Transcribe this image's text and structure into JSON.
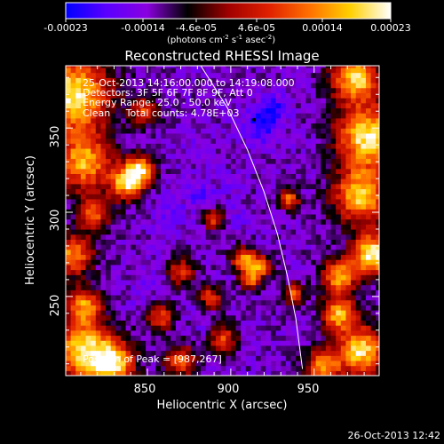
{
  "colorbar": {
    "ticks": [
      "-0.00023",
      "-0.00014",
      "-4.6e-05",
      "4.6e-05",
      "0.00014",
      "0.00023"
    ],
    "range": [
      -0.00023,
      0.00023
    ],
    "unit_base": "(photons cm",
    "unit_sup1": "-2",
    "unit_mid1": " s",
    "unit_sup2": "-1",
    "unit_mid2": " asec",
    "unit_sup3": "-2",
    "unit_end": ")",
    "colors": [
      "#0000ff",
      "#5a00ff",
      "#8a00e0",
      "#000000",
      "#a00000",
      "#e02000",
      "#ff7000",
      "#ffd000",
      "#ffffff"
    ]
  },
  "chart_data": {
    "type": "heatmap",
    "title": "Reconstructed RHESSI Image",
    "xlabel": "Heliocentric X (arcsec)",
    "ylabel": "Heliocentric Y (arcsec)",
    "xlim": [
      801,
      989
    ],
    "ylim": [
      203,
      387
    ],
    "xticks": [
      850,
      900,
      950
    ],
    "yticks": [
      250,
      300,
      350
    ],
    "limb": [
      [
        882,
        387
      ],
      [
        898,
        362
      ],
      [
        910,
        337
      ],
      [
        920,
        312
      ],
      [
        928,
        287
      ],
      [
        934,
        262
      ],
      [
        939,
        237
      ],
      [
        943,
        207
      ]
    ],
    "peak": [
      987,
      267
    ],
    "max_marker": [
      914,
      355
    ],
    "blobs": [
      {
        "x": 805,
        "y": 370,
        "v": 0.95,
        "r": 22
      },
      {
        "x": 812,
        "y": 330,
        "v": 0.7,
        "r": 16
      },
      {
        "x": 838,
        "y": 318,
        "v": 0.85,
        "r": 10
      },
      {
        "x": 846,
        "y": 326,
        "v": 0.7,
        "r": 8
      },
      {
        "x": 805,
        "y": 275,
        "v": 0.6,
        "r": 12
      },
      {
        "x": 818,
        "y": 300,
        "v": 0.45,
        "r": 10
      },
      {
        "x": 812,
        "y": 218,
        "v": 0.9,
        "r": 18
      },
      {
        "x": 830,
        "y": 210,
        "v": 0.75,
        "r": 12
      },
      {
        "x": 812,
        "y": 245,
        "v": 0.55,
        "r": 10
      },
      {
        "x": 975,
        "y": 380,
        "v": 0.85,
        "r": 14
      },
      {
        "x": 982,
        "y": 345,
        "v": 0.95,
        "r": 18
      },
      {
        "x": 978,
        "y": 310,
        "v": 0.8,
        "r": 16
      },
      {
        "x": 985,
        "y": 275,
        "v": 1.0,
        "r": 12
      },
      {
        "x": 965,
        "y": 262,
        "v": 0.65,
        "r": 10
      },
      {
        "x": 965,
        "y": 240,
        "v": 0.7,
        "r": 10
      },
      {
        "x": 978,
        "y": 218,
        "v": 0.9,
        "r": 14
      },
      {
        "x": 955,
        "y": 208,
        "v": 0.65,
        "r": 10
      },
      {
        "x": 908,
        "y": 272,
        "v": 0.7,
        "r": 7
      },
      {
        "x": 918,
        "y": 268,
        "v": 0.6,
        "r": 6
      },
      {
        "x": 912,
        "y": 260,
        "v": 0.45,
        "r": 6
      },
      {
        "x": 935,
        "y": 308,
        "v": 0.5,
        "r": 6
      },
      {
        "x": 938,
        "y": 252,
        "v": 0.4,
        "r": 6
      },
      {
        "x": 870,
        "y": 265,
        "v": 0.3,
        "r": 8
      },
      {
        "x": 858,
        "y": 238,
        "v": 0.35,
        "r": 8
      },
      {
        "x": 888,
        "y": 250,
        "v": 0.3,
        "r": 7
      },
      {
        "x": 895,
        "y": 225,
        "v": 0.4,
        "r": 8
      },
      {
        "x": 870,
        "y": 212,
        "v": 0.45,
        "r": 9
      },
      {
        "x": 848,
        "y": 360,
        "v": 0.35,
        "r": 8
      },
      {
        "x": 890,
        "y": 296,
        "v": 0.3,
        "r": 6
      },
      {
        "x": 918,
        "y": 352,
        "v": -0.9,
        "r": 10
      },
      {
        "x": 925,
        "y": 362,
        "v": -0.8,
        "r": 9
      },
      {
        "x": 880,
        "y": 340,
        "v": -0.55,
        "r": 12
      },
      {
        "x": 865,
        "y": 300,
        "v": -0.6,
        "r": 12
      },
      {
        "x": 882,
        "y": 310,
        "v": -0.7,
        "r": 8
      },
      {
        "x": 905,
        "y": 298,
        "v": -0.6,
        "r": 8
      },
      {
        "x": 898,
        "y": 318,
        "v": -0.55,
        "r": 8
      },
      {
        "x": 855,
        "y": 262,
        "v": -0.6,
        "r": 8
      },
      {
        "x": 845,
        "y": 250,
        "v": -0.55,
        "r": 8
      },
      {
        "x": 875,
        "y": 246,
        "v": -0.5,
        "r": 7
      },
      {
        "x": 885,
        "y": 232,
        "v": -0.55,
        "r": 7
      },
      {
        "x": 950,
        "y": 338,
        "v": -0.5,
        "r": 10
      },
      {
        "x": 952,
        "y": 290,
        "v": -0.45,
        "r": 10
      },
      {
        "x": 900,
        "y": 262,
        "v": -0.5,
        "r": 6
      }
    ]
  },
  "annotations": {
    "time_range": "25-Oct-2013 14:16:00.000 to 14:19:08.000",
    "detectors": "Detectors: 3F 5F 6F 7F 8F 9F, Att 0",
    "energy": "Energy Range: 25.0 - 50.0 keV",
    "clean": "Clean     Total counts: 4.78E+03",
    "peak": "Position of Peak = [987,267]"
  },
  "footer": {
    "timestamp": "26-Oct-2013 12:42"
  }
}
